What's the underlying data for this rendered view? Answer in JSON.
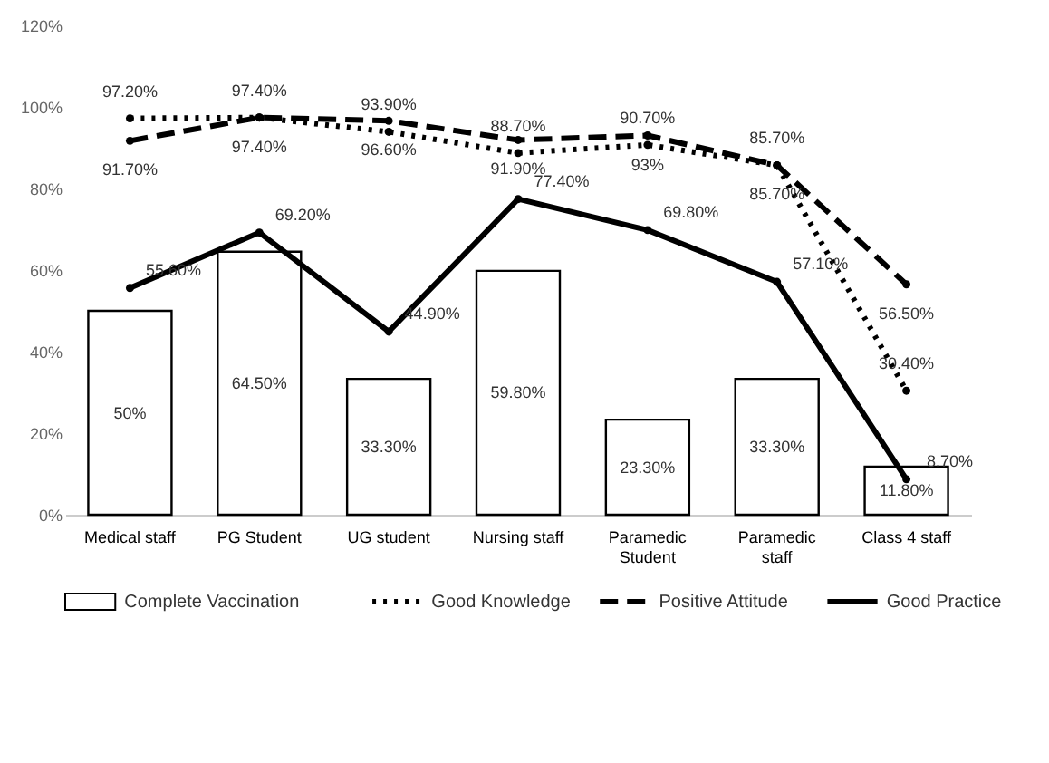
{
  "chart_data": {
    "type": "bar",
    "categories": [
      "Medical staff",
      "PG Student",
      "UG student",
      "Nursing staff",
      "Paramedic Student",
      "Paramedic staff",
      "Class 4 staff"
    ],
    "series": [
      {
        "name": "Complete Vaccination",
        "color": "#ffffff",
        "values": [
          50,
          64.5,
          33.3,
          59.8,
          23.3,
          33.3,
          11.8
        ],
        "value_labels": [
          "50%",
          "64.50%",
          "33.30%",
          "59.80%",
          "23.30%",
          "33.30%",
          "11.80%"
        ]
      },
      {
        "name": "Good Knowledge",
        "type": "line",
        "line_style": "dotted",
        "color": "#000000",
        "values": [
          97.2,
          97.4,
          93.9,
          88.7,
          90.7,
          85.7,
          30.4
        ],
        "value_labels": [
          "97.20%",
          "97.40%",
          "93.90%",
          "88.70%",
          "90.70%",
          "85.70%",
          "30.40%"
        ]
      },
      {
        "name": "Positive Attitude",
        "type": "line",
        "line_style": "dashed",
        "color": "#000000",
        "values": [
          91.7,
          97.4,
          96.6,
          91.9,
          93,
          85.7,
          56.5
        ],
        "value_labels": [
          "91.70%",
          "97.40%",
          "96.60%",
          "91.90%",
          "93%",
          "85.70%",
          "56.50%"
        ]
      },
      {
        "name": "Good Practice",
        "type": "line",
        "line_style": "solid",
        "color": "#000000",
        "values": [
          55.6,
          69.2,
          44.9,
          77.4,
          69.8,
          57.1,
          8.7
        ],
        "value_labels": [
          "55.60%",
          "69.20%",
          "44.90%",
          "77.40%",
          "69.80%",
          "57.10%",
          "8.70%"
        ]
      }
    ],
    "ylim": [
      0,
      120
    ],
    "yticks": [
      {
        "value": 0,
        "label": "0%"
      },
      {
        "value": 20,
        "label": "20%"
      },
      {
        "value": 40,
        "label": "40%"
      },
      {
        "value": 60,
        "label": "60%"
      },
      {
        "value": 80,
        "label": "80%"
      },
      {
        "value": 100,
        "label": "100%"
      },
      {
        "value": 120,
        "label": "120%"
      }
    ],
    "grid": false,
    "legend": "bottom",
    "marker": "circle"
  }
}
